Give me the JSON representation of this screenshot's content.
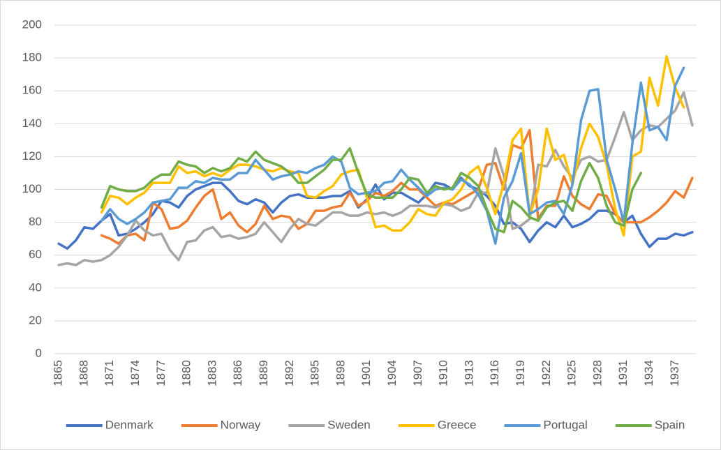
{
  "chart_data": {
    "type": "line",
    "x": [
      1865,
      1866,
      1867,
      1868,
      1869,
      1870,
      1871,
      1872,
      1873,
      1874,
      1875,
      1876,
      1877,
      1878,
      1879,
      1880,
      1881,
      1882,
      1883,
      1884,
      1885,
      1886,
      1887,
      1888,
      1889,
      1890,
      1891,
      1892,
      1893,
      1894,
      1895,
      1896,
      1897,
      1898,
      1899,
      1900,
      1901,
      1902,
      1903,
      1904,
      1905,
      1906,
      1907,
      1908,
      1909,
      1910,
      1911,
      1912,
      1913,
      1914,
      1915,
      1916,
      1917,
      1918,
      1919,
      1920,
      1921,
      1922,
      1923,
      1924,
      1925,
      1926,
      1927,
      1928,
      1929,
      1930,
      1931,
      1932,
      1933,
      1934,
      1935,
      1936,
      1937,
      1938,
      1939
    ],
    "xlim": [
      1864.5,
      1939.5
    ],
    "xticks": [
      1865,
      1868,
      1871,
      1874,
      1877,
      1880,
      1883,
      1886,
      1889,
      1892,
      1895,
      1898,
      1901,
      1904,
      1907,
      1910,
      1913,
      1916,
      1919,
      1922,
      1925,
      1928,
      1931,
      1934,
      1937
    ],
    "ylim": [
      0,
      200
    ],
    "yticks": [
      0,
      20,
      40,
      60,
      80,
      100,
      120,
      140,
      160,
      180,
      200
    ],
    "grid": true,
    "legend": "bottom",
    "series": [
      {
        "name": "Denmark",
        "color": "#4472c4",
        "values": [
          67,
          64,
          69,
          77,
          76,
          81,
          85,
          72,
          73,
          76,
          80,
          85,
          93,
          92,
          89,
          96,
          100,
          102,
          104,
          104,
          99,
          93,
          91,
          94,
          92,
          86,
          92,
          96,
          97,
          95,
          95,
          95,
          96,
          96,
          99,
          89,
          94,
          103,
          94,
          98,
          98,
          95,
          92,
          97,
          104,
          103,
          100,
          107,
          102,
          100,
          96,
          90,
          79,
          80,
          76,
          68,
          75,
          80,
          77,
          84,
          77,
          79,
          82,
          87,
          87,
          85,
          80,
          84,
          73,
          65,
          70,
          70,
          73,
          72,
          74
        ]
      },
      {
        "name": "Norway",
        "color": "#ed7d31",
        "values": [
          null,
          null,
          null,
          null,
          null,
          72,
          70,
          67,
          72,
          73,
          69,
          92,
          88,
          76,
          77,
          81,
          89,
          96,
          100,
          82,
          86,
          78,
          74,
          79,
          90,
          82,
          84,
          83,
          76,
          79,
          87,
          87,
          89,
          90,
          98,
          90,
          93,
          98,
          96,
          99,
          104,
          100,
          100,
          95,
          90,
          92,
          91,
          94,
          97,
          100,
          115,
          116,
          100,
          127,
          125,
          136,
          82,
          90,
          90,
          108,
          96,
          91,
          88,
          97,
          96,
          85,
          80,
          80,
          80,
          83,
          87,
          92,
          99,
          95,
          107
        ]
      },
      {
        "name": "Sweden",
        "color": "#a5a5a5",
        "values": [
          54,
          55,
          54,
          57,
          56,
          57,
          60,
          65,
          72,
          81,
          75,
          72,
          73,
          63,
          57,
          68,
          69,
          75,
          77,
          71,
          72,
          70,
          71,
          73,
          80,
          74,
          68,
          76,
          82,
          79,
          78,
          82,
          86,
          86,
          84,
          84,
          86,
          85,
          86,
          84,
          86,
          90,
          90,
          90,
          89,
          91,
          90,
          87,
          89,
          98,
          98,
          125,
          108,
          76,
          78,
          82,
          115,
          114,
          124,
          114,
          107,
          118,
          120,
          117,
          118,
          132,
          147,
          130,
          136,
          139,
          138,
          143,
          148,
          159,
          139
        ]
      },
      {
        "name": "Greece",
        "color": "#ffc000",
        "values": [
          null,
          null,
          null,
          null,
          null,
          86,
          96,
          95,
          91,
          95,
          98,
          104,
          104,
          104,
          114,
          110,
          111,
          108,
          110,
          108,
          112,
          115,
          115,
          114,
          112,
          111,
          113,
          111,
          110,
          96,
          95,
          99,
          102,
          109,
          111,
          112,
          95,
          77,
          78,
          75,
          75,
          80,
          88,
          85,
          84,
          92,
          94,
          100,
          110,
          114,
          101,
          85,
          104,
          130,
          137,
          84,
          100,
          137,
          118,
          121,
          103,
          125,
          140,
          132,
          115,
          88,
          72,
          120,
          123,
          168,
          151,
          181,
          162,
          150,
          null
        ]
      },
      {
        "name": "Portugal",
        "color": "#5b9bd5",
        "values": [
          null,
          null,
          null,
          null,
          null,
          81,
          88,
          82,
          79,
          82,
          86,
          92,
          93,
          94,
          101,
          101,
          105,
          104,
          107,
          106,
          106,
          110,
          110,
          118,
          112,
          106,
          108,
          109,
          111,
          110,
          113,
          115,
          120,
          117,
          101,
          97,
          98,
          99,
          104,
          105,
          112,
          106,
          101,
          96,
          100,
          101,
          100,
          106,
          103,
          97,
          87,
          67,
          95,
          105,
          122,
          85,
          88,
          92,
          93,
          85,
          103,
          142,
          160,
          161,
          118,
          100,
          80,
          128,
          165,
          136,
          138,
          130,
          163,
          174,
          null
        ]
      },
      {
        "name": "Spain",
        "color": "#70ad47",
        "values": [
          null,
          null,
          null,
          null,
          null,
          89,
          102,
          100,
          99,
          99,
          101,
          106,
          109,
          109,
          117,
          115,
          114,
          110,
          113,
          111,
          113,
          119,
          117,
          123,
          118,
          116,
          114,
          110,
          104,
          104,
          108,
          112,
          118,
          118,
          125,
          110,
          97,
          95,
          95,
          95,
          100,
          107,
          106,
          98,
          102,
          100,
          101,
          110,
          107,
          102,
          88,
          76,
          74,
          93,
          89,
          83,
          81,
          89,
          92,
          93,
          87,
          105,
          116,
          107,
          90,
          80,
          78,
          100,
          110,
          null,
          null,
          null,
          null,
          null,
          null
        ]
      }
    ]
  }
}
